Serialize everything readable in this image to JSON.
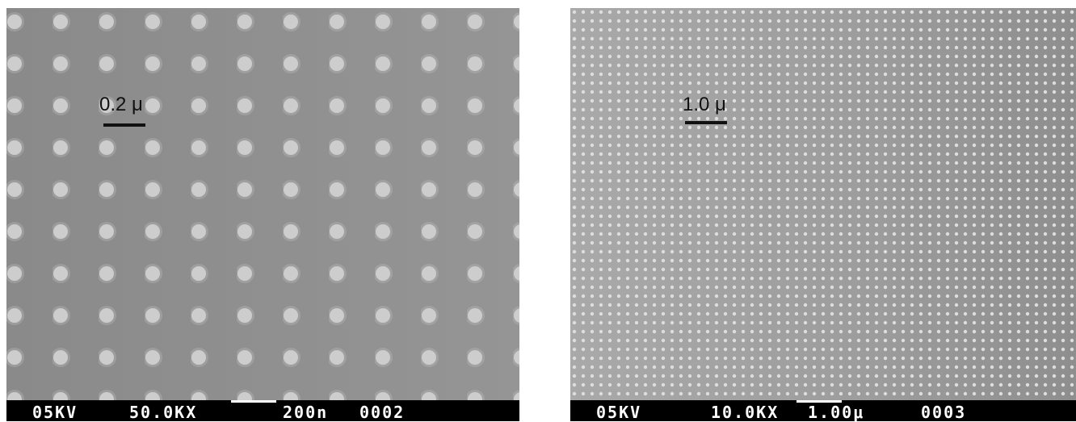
{
  "panels": [
    {
      "scale_label": "0.2 μ",
      "footer": {
        "voltage": "05KV",
        "magnification": "50.0KX",
        "scale": "200n",
        "number": "0002"
      }
    },
    {
      "scale_label": "1.0 μ",
      "footer": {
        "voltage": "05KV",
        "magnification": "10.0KX",
        "scale": "1.00μ",
        "number": "0003"
      }
    }
  ]
}
